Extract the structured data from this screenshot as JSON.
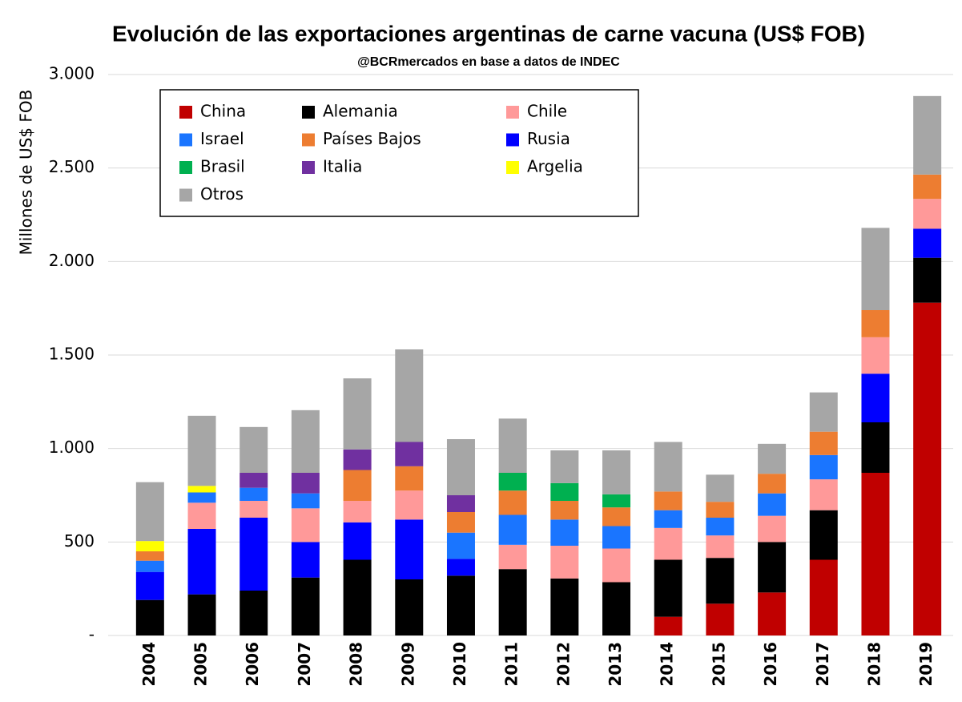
{
  "chart_data": {
    "type": "bar",
    "stacked": true,
    "title": "Evolución de las exportaciones argentinas de carne vacuna (US$ FOB)",
    "subtitle": "@BCRmercados en base a datos de INDEC",
    "y_label": "Millones de US$ FOB",
    "categories": [
      "2004",
      "2005",
      "2006",
      "2007",
      "2008",
      "2009",
      "2010",
      "2011",
      "2012",
      "2013",
      "2014",
      "2015",
      "2016",
      "2017",
      "2018",
      "2019"
    ],
    "series": [
      {
        "name": "China",
        "color": "#c00000",
        "values": [
          0,
          0,
          0,
          0,
          0,
          0,
          0,
          0,
          0,
          0,
          100,
          170,
          230,
          405,
          870,
          1780
        ]
      },
      {
        "name": "Alemania",
        "color": "#000000",
        "values": [
          190,
          220,
          240,
          310,
          405,
          300,
          320,
          355,
          305,
          285,
          305,
          245,
          270,
          265,
          270,
          240
        ]
      },
      {
        "name": "Chile",
        "color": "#ff9999",
        "values": [
          0,
          140,
          90,
          180,
          115,
          155,
          0,
          130,
          175,
          180,
          170,
          120,
          140,
          165,
          195,
          160
        ]
      },
      {
        "name": "Israel",
        "color": "#1a75ff",
        "values": [
          60,
          55,
          70,
          80,
          0,
          0,
          140,
          160,
          140,
          120,
          95,
          95,
          120,
          130,
          0,
          0
        ]
      },
      {
        "name": "Países Bajos",
        "color": "#ed7d31",
        "values": [
          50,
          0,
          0,
          0,
          165,
          130,
          110,
          130,
          100,
          100,
          100,
          85,
          105,
          125,
          145,
          130
        ]
      },
      {
        "name": "Rusia",
        "color": "#0000ff",
        "values": [
          150,
          350,
          390,
          190,
          200,
          320,
          90,
          0,
          0,
          0,
          0,
          0,
          0,
          0,
          260,
          155
        ]
      },
      {
        "name": "Brasil",
        "color": "#00b050",
        "values": [
          0,
          0,
          0,
          0,
          0,
          0,
          0,
          95,
          95,
          70,
          0,
          0,
          0,
          0,
          0,
          0
        ]
      },
      {
        "name": "Italia",
        "color": "#7030a0",
        "values": [
          0,
          0,
          80,
          110,
          110,
          130,
          90,
          0,
          0,
          0,
          0,
          0,
          0,
          0,
          0,
          0
        ]
      },
      {
        "name": "Argelia",
        "color": "#ffff00",
        "values": [
          55,
          35,
          0,
          0,
          0,
          0,
          0,
          0,
          0,
          0,
          0,
          0,
          0,
          0,
          0,
          0
        ]
      },
      {
        "name": "Otros",
        "color": "#a6a6a6",
        "values": [
          315,
          375,
          245,
          335,
          380,
          495,
          300,
          290,
          175,
          235,
          265,
          145,
          160,
          210,
          440,
          420
        ]
      }
    ],
    "ylim": [
      0,
      3000
    ],
    "yticks": [
      {
        "value": 0,
        "label": "-"
      },
      500,
      {
        "value": 1000,
        "label": "1.000"
      },
      {
        "value": 1500,
        "label": "1.500"
      },
      {
        "value": 2000,
        "label": "2.000"
      },
      {
        "value": 2500,
        "label": "2.500"
      },
      {
        "value": 3000,
        "label": "3.000"
      }
    ],
    "grid": true
  }
}
